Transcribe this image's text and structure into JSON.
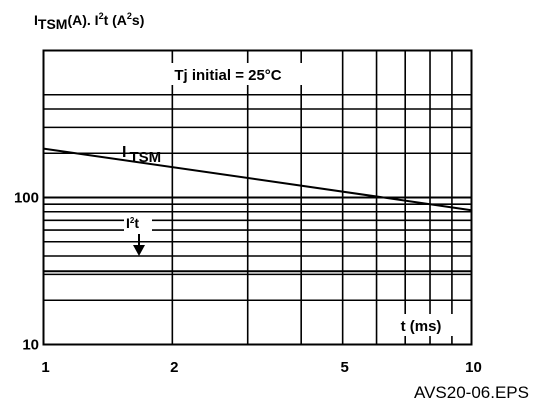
{
  "chart_data": {
    "type": "line",
    "title_parts": {
      "i": "I",
      "tsm": "TSM",
      "a": "(A). I",
      "two": "2",
      "t": "t (A",
      "s": "s)"
    },
    "x_scale": "log",
    "y_scale": "log",
    "xlim": [
      1,
      10
    ],
    "ylim": [
      10,
      1000
    ],
    "x_ticks": [
      {
        "value": 1,
        "label": "1"
      },
      {
        "value": 2,
        "label": "2"
      },
      {
        "value": 5,
        "label": "5"
      },
      {
        "value": 10,
        "label": "10"
      }
    ],
    "x_gridlines": [
      2,
      3,
      4,
      5,
      6,
      7,
      8,
      9
    ],
    "y_ticks": [
      {
        "value": 10,
        "label": "10"
      },
      {
        "value": 100,
        "label": "100"
      }
    ],
    "y_gridlines": [
      20,
      30,
      40,
      50,
      60,
      70,
      80,
      90,
      200,
      300,
      400,
      500
    ],
    "series": [
      {
        "name": "ITSM",
        "label_main": "I",
        "label_sub": "TSM",
        "x": [
          1,
          10
        ],
        "y": [
          215,
          82
        ],
        "color": "#000000"
      },
      {
        "name": "I2t",
        "label_main": "I",
        "label_sup": "2",
        "label_tail": "t",
        "x": [
          1,
          10
        ],
        "y": [
          31.5,
          31.5
        ],
        "color": "#000000"
      }
    ],
    "annotations": {
      "condition": "Tj initial = 25°C",
      "x_unit": "t (ms)"
    },
    "grid": true
  },
  "footer": "AVS20-06.EPS"
}
